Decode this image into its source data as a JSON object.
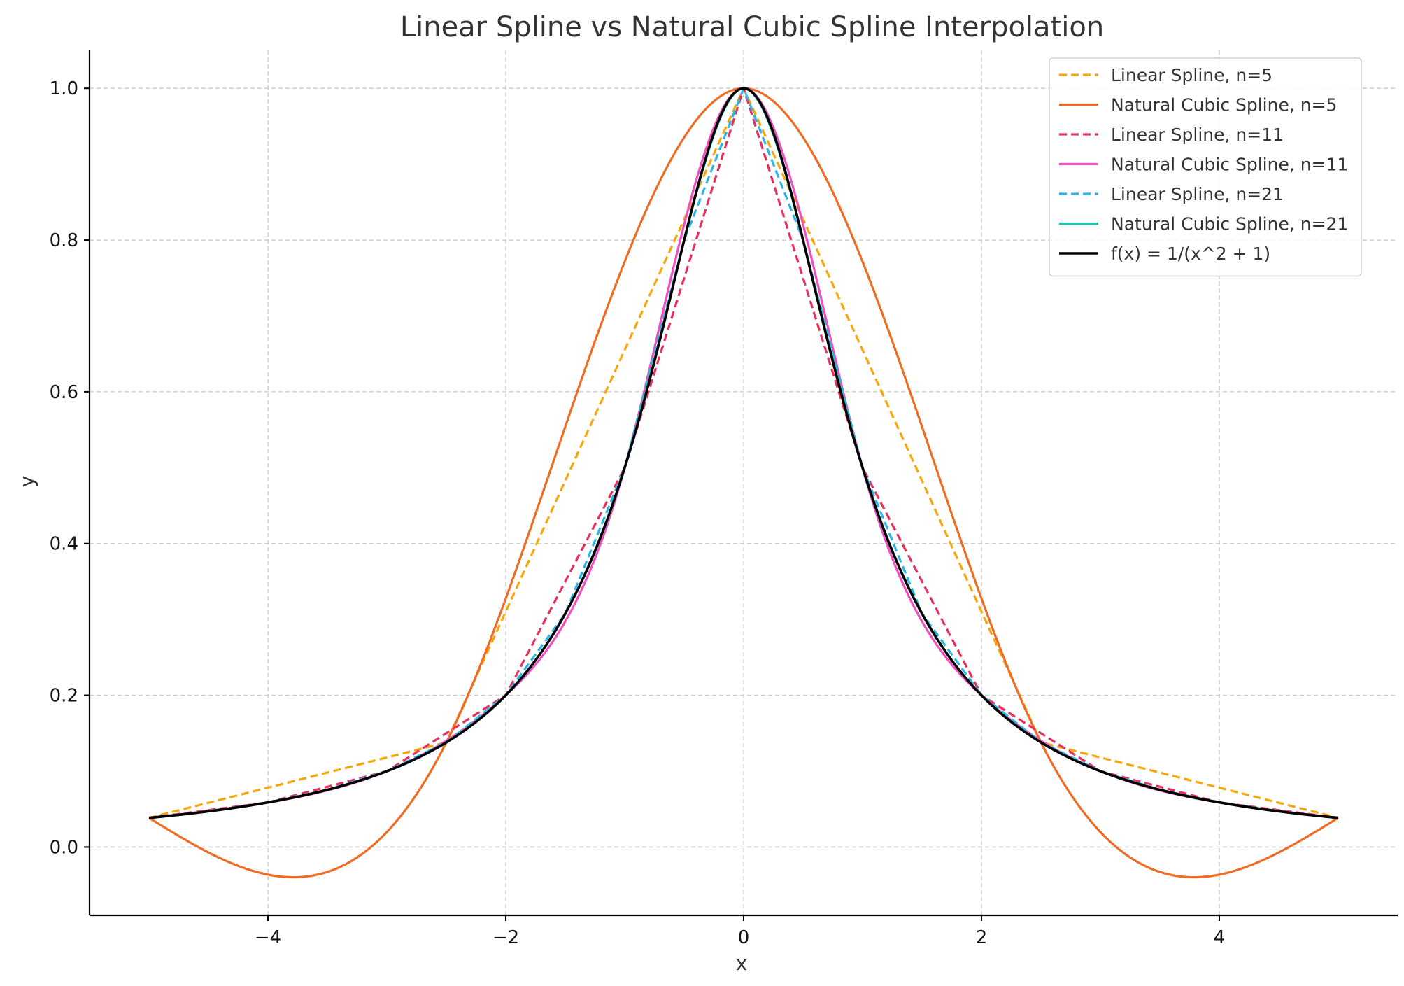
{
  "chart_data": {
    "type": "line",
    "title": "Linear Spline vs Natural Cubic Spline Interpolation",
    "xlabel": "x",
    "ylabel": "y",
    "xlim": [
      -5.5,
      5.5
    ],
    "ylim": [
      -0.09,
      1.05
    ],
    "x_ticks": [
      -4,
      -2,
      0,
      2,
      4
    ],
    "x_tick_labels": [
      "−4",
      "−2",
      "0",
      "2",
      "4"
    ],
    "y_ticks": [
      0.0,
      0.2,
      0.4,
      0.6,
      0.8,
      1.0
    ],
    "y_tick_labels": [
      "0.0",
      "0.2",
      "0.4",
      "0.6",
      "0.8",
      "1.0"
    ],
    "grid": true,
    "legend_position": "top-right",
    "series": [
      {
        "name": "Linear Spline, n=5",
        "kind": "linear",
        "style": "dashed",
        "color": "#f7a70b",
        "x": [
          -5,
          -2.5,
          0,
          2.5,
          5
        ],
        "y": [
          0.03846,
          0.13793,
          1.0,
          0.13793,
          0.03846
        ]
      },
      {
        "name": "Natural Cubic Spline, n=5",
        "kind": "natural-cubic",
        "style": "solid",
        "color": "#ef6c24",
        "x": [
          -5,
          -2.5,
          0,
          2.5,
          5
        ],
        "y": [
          0.03846,
          0.13793,
          1.0,
          0.13793,
          0.03846
        ]
      },
      {
        "name": "Linear Spline, n=11",
        "kind": "linear",
        "style": "dashed",
        "color": "#e9305b",
        "x": [
          -5,
          -4,
          -3,
          -2,
          -1,
          0,
          1,
          2,
          3,
          4,
          5
        ],
        "y": [
          0.03846,
          0.05882,
          0.1,
          0.2,
          0.5,
          1.0,
          0.5,
          0.2,
          0.1,
          0.05882,
          0.03846
        ]
      },
      {
        "name": "Natural Cubic Spline, n=11",
        "kind": "natural-cubic",
        "style": "solid",
        "color": "#f050c0",
        "x": [
          -5,
          -4,
          -3,
          -2,
          -1,
          0,
          1,
          2,
          3,
          4,
          5
        ],
        "y": [
          0.03846,
          0.05882,
          0.1,
          0.2,
          0.5,
          1.0,
          0.5,
          0.2,
          0.1,
          0.05882,
          0.03846
        ]
      },
      {
        "name": "Linear Spline, n=21",
        "kind": "linear",
        "style": "dashed",
        "color": "#2bb6e8",
        "x": [
          -5,
          -4.5,
          -4,
          -3.5,
          -3,
          -2.5,
          -2,
          -1.5,
          -1,
          -0.5,
          0,
          0.5,
          1,
          1.5,
          2,
          2.5,
          3,
          3.5,
          4,
          4.5,
          5
        ],
        "y": [
          0.03846,
          0.04706,
          0.05882,
          0.07547,
          0.1,
          0.13793,
          0.2,
          0.30769,
          0.5,
          0.8,
          1.0,
          0.8,
          0.5,
          0.30769,
          0.2,
          0.13793,
          0.1,
          0.07547,
          0.05882,
          0.04706,
          0.03846
        ]
      },
      {
        "name": "Natural Cubic Spline, n=21",
        "kind": "natural-cubic",
        "style": "solid",
        "color": "#1cc4b4",
        "x": [
          -5,
          -4.5,
          -4,
          -3.5,
          -3,
          -2.5,
          -2,
          -1.5,
          -1,
          -0.5,
          0,
          0.5,
          1,
          1.5,
          2,
          2.5,
          3,
          3.5,
          4,
          4.5,
          5
        ],
        "y": [
          0.03846,
          0.04706,
          0.05882,
          0.07547,
          0.1,
          0.13793,
          0.2,
          0.30769,
          0.5,
          0.8,
          1.0,
          0.8,
          0.5,
          0.30769,
          0.2,
          0.13793,
          0.1,
          0.07547,
          0.05882,
          0.04706,
          0.03846
        ]
      },
      {
        "name": "f(x) = 1/(x^2 + 1)",
        "kind": "function",
        "style": "solid",
        "color": "#000000",
        "x": [
          -5,
          -4.5,
          -4,
          -3.5,
          -3,
          -2.5,
          -2,
          -1.75,
          -1.5,
          -1.25,
          -1,
          -0.75,
          -0.5,
          -0.25,
          0,
          0.25,
          0.5,
          0.75,
          1,
          1.25,
          1.5,
          1.75,
          2,
          2.5,
          3,
          3.5,
          4,
          4.5,
          5
        ],
        "y": [
          0.03846,
          0.04706,
          0.05882,
          0.07547,
          0.1,
          0.13793,
          0.2,
          0.24615,
          0.30769,
          0.39024,
          0.5,
          0.64,
          0.8,
          0.94118,
          1.0,
          0.94118,
          0.8,
          0.64,
          0.5,
          0.39024,
          0.30769,
          0.24615,
          0.2,
          0.13793,
          0.1,
          0.07547,
          0.05882,
          0.04706,
          0.03846
        ]
      }
    ]
  }
}
